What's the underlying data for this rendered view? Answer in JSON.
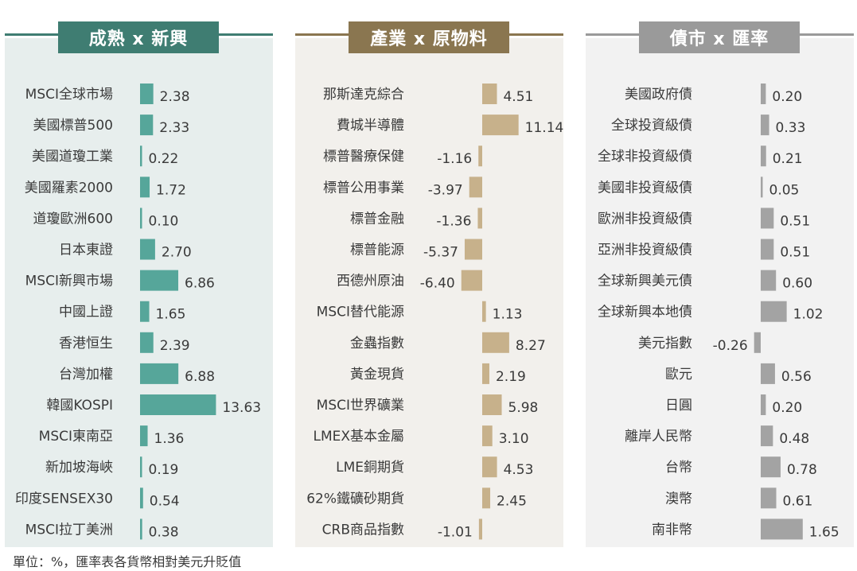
{
  "footnote": "單位：%，匯率表各貨幣相對美元升貶值",
  "chart_data": [
    {
      "type": "bar",
      "title": "成熟 x 新興",
      "colors": {
        "header": "#3f7d72",
        "bar": "#56a69a",
        "panel": "#e7eeed"
      },
      "categories": [
        "MSCI全球市場",
        "美國標普500",
        "美國道瓊工業",
        "美國羅素2000",
        "道瓊歐洲600",
        "日本東證",
        "MSCI新興市場",
        "中國上證",
        "香港恒生",
        "台灣加權",
        "韓國KOSPI",
        "MSCI東南亞",
        "新加坡海峽",
        "印度SENSEX30",
        "MSCI拉丁美洲"
      ],
      "values": [
        2.38,
        2.33,
        0.22,
        1.72,
        0.1,
        2.7,
        6.86,
        1.65,
        2.39,
        6.88,
        13.63,
        1.36,
        0.19,
        0.54,
        0.38
      ],
      "value_labels": [
        "2.38",
        "2.33",
        "0.22",
        "1.72",
        "0.10",
        "2.70",
        "6.86",
        "1.65",
        "2.39",
        "6.88",
        "13.63",
        "1.36",
        "0.19",
        "0.54",
        "0.38"
      ]
    },
    {
      "type": "bar",
      "title": "產業 x 原物料",
      "colors": {
        "header": "#8a7650",
        "bar": "#c7b18b",
        "panel": "#f2f0ec"
      },
      "categories": [
        "那斯達克綜合",
        "費城半導體",
        "標普醫療保健",
        "標普公用事業",
        "標普金融",
        "標普能源",
        "西德州原油",
        "MSCI替代能源",
        "金蟲指數",
        "黃金現貨",
        "MSCI世界礦業",
        "LMEX基本金屬",
        "LME銅期貨",
        "62%鐵礦砂期貨",
        "CRB商品指數"
      ],
      "values": [
        4.51,
        11.14,
        -1.16,
        -3.97,
        -1.36,
        -5.37,
        -6.4,
        1.13,
        8.27,
        2.19,
        5.98,
        3.1,
        4.53,
        2.45,
        -1.01
      ],
      "value_labels": [
        "4.51",
        "11.14",
        "-1.16",
        "-3.97",
        "-1.36",
        "-5.37",
        "-6.40",
        "1.13",
        "8.27",
        "2.19",
        "5.98",
        "3.10",
        "4.53",
        "2.45",
        "-1.01"
      ]
    },
    {
      "type": "bar",
      "title": "債市 x 匯率",
      "colors": {
        "header": "#9a9a9a",
        "bar": "#a3a3a3",
        "panel": "#f2f2f2"
      },
      "categories": [
        "美國政府債",
        "全球投資級債",
        "全球非投資級債",
        "美國非投資級債",
        "歐洲非投資級債",
        "亞洲非投資級債",
        "全球新興美元債",
        "全球新興本地債",
        "美元指數",
        "歐元",
        "日圓",
        "離岸人民幣",
        "台幣",
        "澳幣",
        "南非幣"
      ],
      "values": [
        0.2,
        0.33,
        0.21,
        0.05,
        0.51,
        0.51,
        0.6,
        1.02,
        -0.26,
        0.56,
        0.2,
        0.48,
        0.78,
        0.61,
        1.65
      ],
      "value_labels": [
        "0.20",
        "0.33",
        "0.21",
        "0.05",
        "0.51",
        "0.51",
        "0.60",
        "1.02",
        "-0.26",
        "0.56",
        "0.20",
        "0.48",
        "0.78",
        "0.61",
        "1.65"
      ]
    }
  ]
}
